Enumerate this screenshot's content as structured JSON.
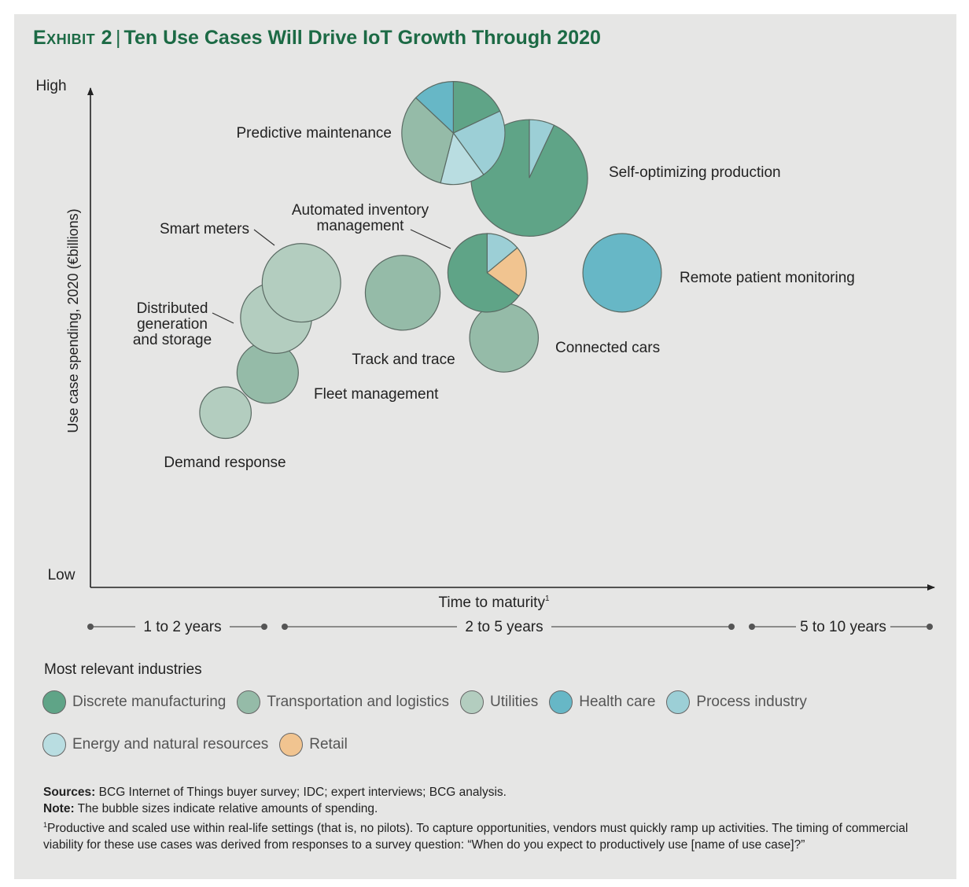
{
  "header": {
    "exhibit": "Exhibit 2",
    "separator": "|",
    "title": "Ten Use Cases Will Drive IoT Growth Through 2020"
  },
  "colors": {
    "discrete_manufacturing": "#5fa487",
    "transportation_logistics": "#95bba8",
    "utilities": "#b3cdbf",
    "health_care": "#67b7c6",
    "process_industry": "#9ccfd6",
    "energy_natural_resources": "#b9dde1",
    "retail": "#f1c490",
    "title_green": "#1c6a45"
  },
  "chart_data": {
    "type": "bubble",
    "title": "Ten Use Cases Will Drive IoT Growth Through 2020",
    "xlabel": "Time to maturity",
    "xlabel_footnote": "1",
    "ylabel": "Use case spending, 2020 (€billions)",
    "y_high_label": "High",
    "y_low_label": "Low",
    "x_ranges": [
      {
        "label": "1 to 2 years"
      },
      {
        "label": "2 to 5 years"
      },
      {
        "label": "5 to 10 years"
      }
    ],
    "note": "The bubble sizes indicate relative amounts of spending.",
    "bubbles": [
      {
        "label": "Predictive maintenance",
        "x": 0.43,
        "y": 0.91,
        "size": 0.84,
        "segments": [
          {
            "industry": "discrete_manufacturing",
            "share": 0.18
          },
          {
            "industry": "process_industry",
            "share": 0.22
          },
          {
            "industry": "energy_natural_resources",
            "share": 0.14
          },
          {
            "industry": "transportation_logistics",
            "share": 0.33
          },
          {
            "industry": "health_care",
            "share": 0.13
          }
        ]
      },
      {
        "label": "Self-optimizing production",
        "x": 0.52,
        "y": 0.82,
        "size": 0.95,
        "segments": [
          {
            "industry": "process_industry",
            "share": 0.07
          },
          {
            "industry": "discrete_manufacturing",
            "share": 0.93
          }
        ]
      },
      {
        "label": "Automated inventory management",
        "x": 0.47,
        "y": 0.63,
        "size": 0.64,
        "segments": [
          {
            "industry": "process_industry",
            "share": 0.14
          },
          {
            "industry": "retail",
            "share": 0.21
          },
          {
            "industry": "discrete_manufacturing",
            "share": 0.65
          }
        ]
      },
      {
        "label": "Remote patient monitoring",
        "x": 0.63,
        "y": 0.63,
        "size": 0.64,
        "segments": [
          {
            "industry": "health_care",
            "share": 1.0
          }
        ]
      },
      {
        "label": "Connected cars",
        "x": 0.49,
        "y": 0.5,
        "size": 0.56,
        "segments": [
          {
            "industry": "transportation_logistics",
            "share": 1.0
          }
        ]
      },
      {
        "label": "Track and trace",
        "x": 0.37,
        "y": 0.59,
        "size": 0.61,
        "segments": [
          {
            "industry": "transportation_logistics",
            "share": 1.0
          }
        ]
      },
      {
        "label": "Smart meters",
        "x": 0.25,
        "y": 0.61,
        "size": 0.64,
        "segments": [
          {
            "industry": "utilities",
            "share": 1.0
          }
        ]
      },
      {
        "label": "Distributed generation and storage",
        "x": 0.22,
        "y": 0.54,
        "size": 0.58,
        "segments": [
          {
            "industry": "utilities",
            "share": 1.0
          }
        ]
      },
      {
        "label": "Fleet management",
        "x": 0.21,
        "y": 0.43,
        "size": 0.5,
        "segments": [
          {
            "industry": "transportation_logistics",
            "share": 1.0
          }
        ]
      },
      {
        "label": "Demand response",
        "x": 0.16,
        "y": 0.35,
        "size": 0.42,
        "segments": [
          {
            "industry": "utilities",
            "share": 1.0
          }
        ]
      }
    ]
  },
  "legend": {
    "title": "Most relevant industries",
    "row1": [
      {
        "key": "discrete_manufacturing",
        "label": "Discrete manufacturing"
      },
      {
        "key": "transportation_logistics",
        "label": "Transportation and logistics"
      },
      {
        "key": "utilities",
        "label": "Utilities"
      },
      {
        "key": "health_care",
        "label": "Health care"
      },
      {
        "key": "process_industry",
        "label": "Process industry"
      }
    ],
    "row2": [
      {
        "key": "energy_natural_resources",
        "label": "Energy and natural resources"
      },
      {
        "key": "retail",
        "label": "Retail"
      }
    ]
  },
  "footer": {
    "sources_label": "Sources:",
    "sources_text": "BCG Internet of Things buyer survey; IDC; expert interviews; BCG analysis.",
    "note_label": "Note:",
    "note_text": "The bubble sizes indicate relative amounts of spending.",
    "footnote_marker": "1",
    "footnote_text": "Productive and scaled use within real-life settings (that is, no pilots). To capture opportunities, vendors must quickly ramp up activities. The timing of commercial viability for these use cases was derived from responses to a survey question: “When do you expect to productively use [name of use case]?”"
  }
}
